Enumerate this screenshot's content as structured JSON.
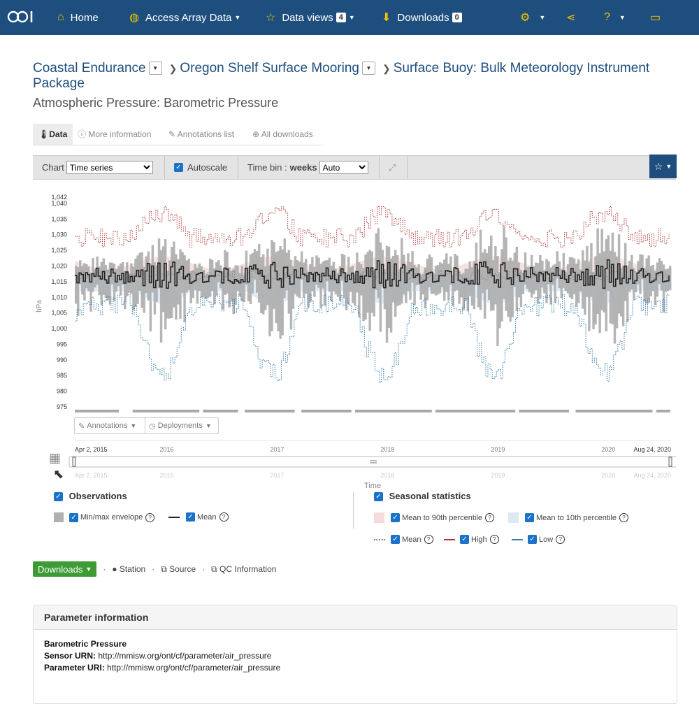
{
  "nav": {
    "logo": "OOI",
    "home": "Home",
    "access": "Access Array Data",
    "dataviews": "Data views",
    "dataviews_count": "4",
    "downloads": "Downloads",
    "downloads_count": "0"
  },
  "breadcrumb": {
    "level1": "Coastal Endurance",
    "level2": "Oregon Shelf Surface Mooring",
    "level3": "Surface Buoy: Bulk Meteorology Instrument Package"
  },
  "subtitle": "Atmospheric Pressure: Barometric Pressure",
  "tabs": {
    "data": "Data",
    "more": "More information",
    "annotations": "Annotations list",
    "downloads": "All downloads"
  },
  "toolbar": {
    "chart_label": "Chart",
    "chart_value": "Time series",
    "autoscale": "Autoscale",
    "timebin_label": "Time bin :",
    "timebin_unit": "weeks",
    "timebin_value": "Auto"
  },
  "chart_data": {
    "type": "line",
    "ylabel": "hPa",
    "xlabel": "Time",
    "ylim": [
      975,
      1042
    ],
    "yticks": [
      "1,042",
      "1,040",
      "1,035",
      "1,030",
      "1,025",
      "1,020",
      "1,015",
      "1,010",
      "1,005",
      "1,000",
      "995",
      "990",
      "985",
      "980",
      "975"
    ],
    "ytick_values": [
      1042,
      1040,
      1035,
      1030,
      1025,
      1020,
      1015,
      1010,
      1005,
      1000,
      995,
      990,
      985,
      980,
      975
    ],
    "x_start": "Apr 2, 2015",
    "x_end": "Aug 24, 2020",
    "year_ticks": [
      "2016",
      "2017",
      "2018",
      "2019",
      "2020"
    ],
    "year_tick_values": [
      2016,
      2017,
      2018,
      2019,
      2020
    ],
    "x_range": [
      2015.25,
      2020.65
    ],
    "series": [
      {
        "name": "Min/max envelope"
      },
      {
        "name": "Mean"
      },
      {
        "name": "Mean to 90th percentile"
      },
      {
        "name": "Mean to 10th percentile"
      },
      {
        "name": "High"
      },
      {
        "name": "Low"
      }
    ]
  },
  "chart_controls": {
    "annotations": "Annotations",
    "deployments": "Deployments"
  },
  "legend": {
    "observations": "Observations",
    "minmax": "Min/max envelope",
    "mean": "Mean",
    "seasonal": "Seasonal statistics",
    "mean90": "Mean to 90th percentile",
    "mean10": "Mean to 10th percentile",
    "smean": "Mean",
    "high": "High",
    "low": "Low"
  },
  "links": {
    "downloads": "Downloads",
    "station": "Station",
    "source": "Source",
    "qc": "QC Information"
  },
  "param": {
    "header": "Parameter information",
    "name": "Barometric Pressure",
    "sensor_label": "Sensor URN:",
    "sensor_value": "http://mmisw.org/ont/cf/parameter/air_pressure",
    "param_label": "Parameter URI:",
    "param_value": "http://mmisw.org/ont/cf/parameter/air_pressure"
  },
  "colors": {
    "nav_bg": "#1d4e7e",
    "accent_icon": "#f0c400",
    "high_line": "#b03a3a",
    "low_line": "#3a7fb0",
    "envelope": "#b0b0b0",
    "download_btn": "#3d9b35"
  }
}
